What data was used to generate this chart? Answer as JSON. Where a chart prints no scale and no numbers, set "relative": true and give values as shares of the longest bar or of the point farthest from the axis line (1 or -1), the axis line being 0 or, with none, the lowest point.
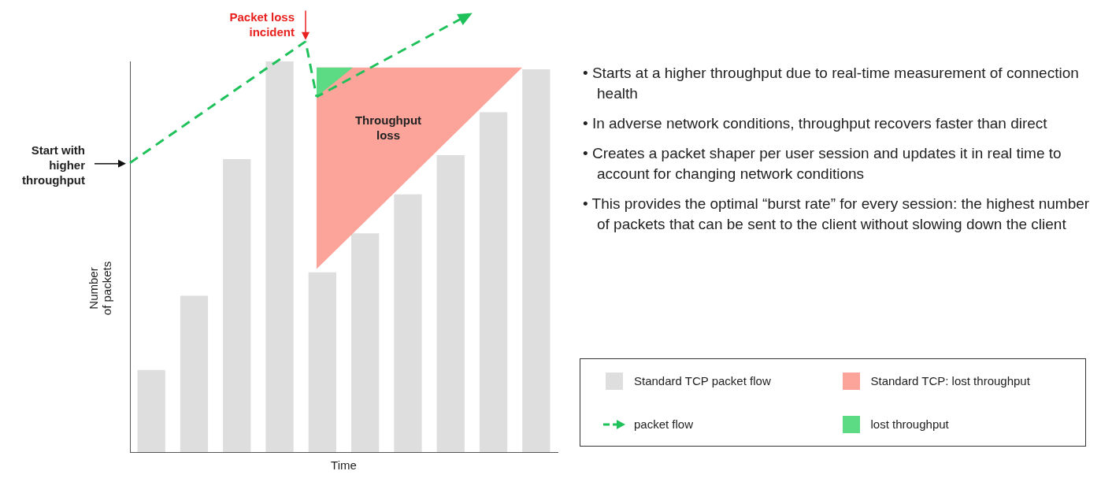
{
  "chart_data": {
    "type": "bar",
    "relative": true,
    "xlabel": "Time",
    "ylabel": "Number of packets",
    "categories": [
      null,
      null,
      null,
      null,
      null,
      null,
      null,
      null,
      null,
      null
    ],
    "legend": "right",
    "series": [
      {
        "name": "Standard TCP packet flow",
        "color": "#dedede",
        "values": [
          0.21,
          0.4,
          0.75,
          1,
          0.46,
          0.56,
          0.66,
          0.76,
          0.87,
          0.98
        ]
      }
    ],
    "annotations": [
      "Start with higher throughput",
      "Packet loss incident",
      "Throughput loss",
      "• Starts at a higher throughput due to real-time measurement of connection health",
      "• In adverse network conditions, throughput recovers faster than direct",
      "• Creates a packet shaper per user session and updates it in real time to account for changing network conditions",
      "• This provides the optimal “burst rate” for every session: the highest number of packets that can be sent to the client without slowing down the client",
      "packet flow",
      "Standard TCP: lost throughput",
      "lost throughput"
    ]
  }
}
